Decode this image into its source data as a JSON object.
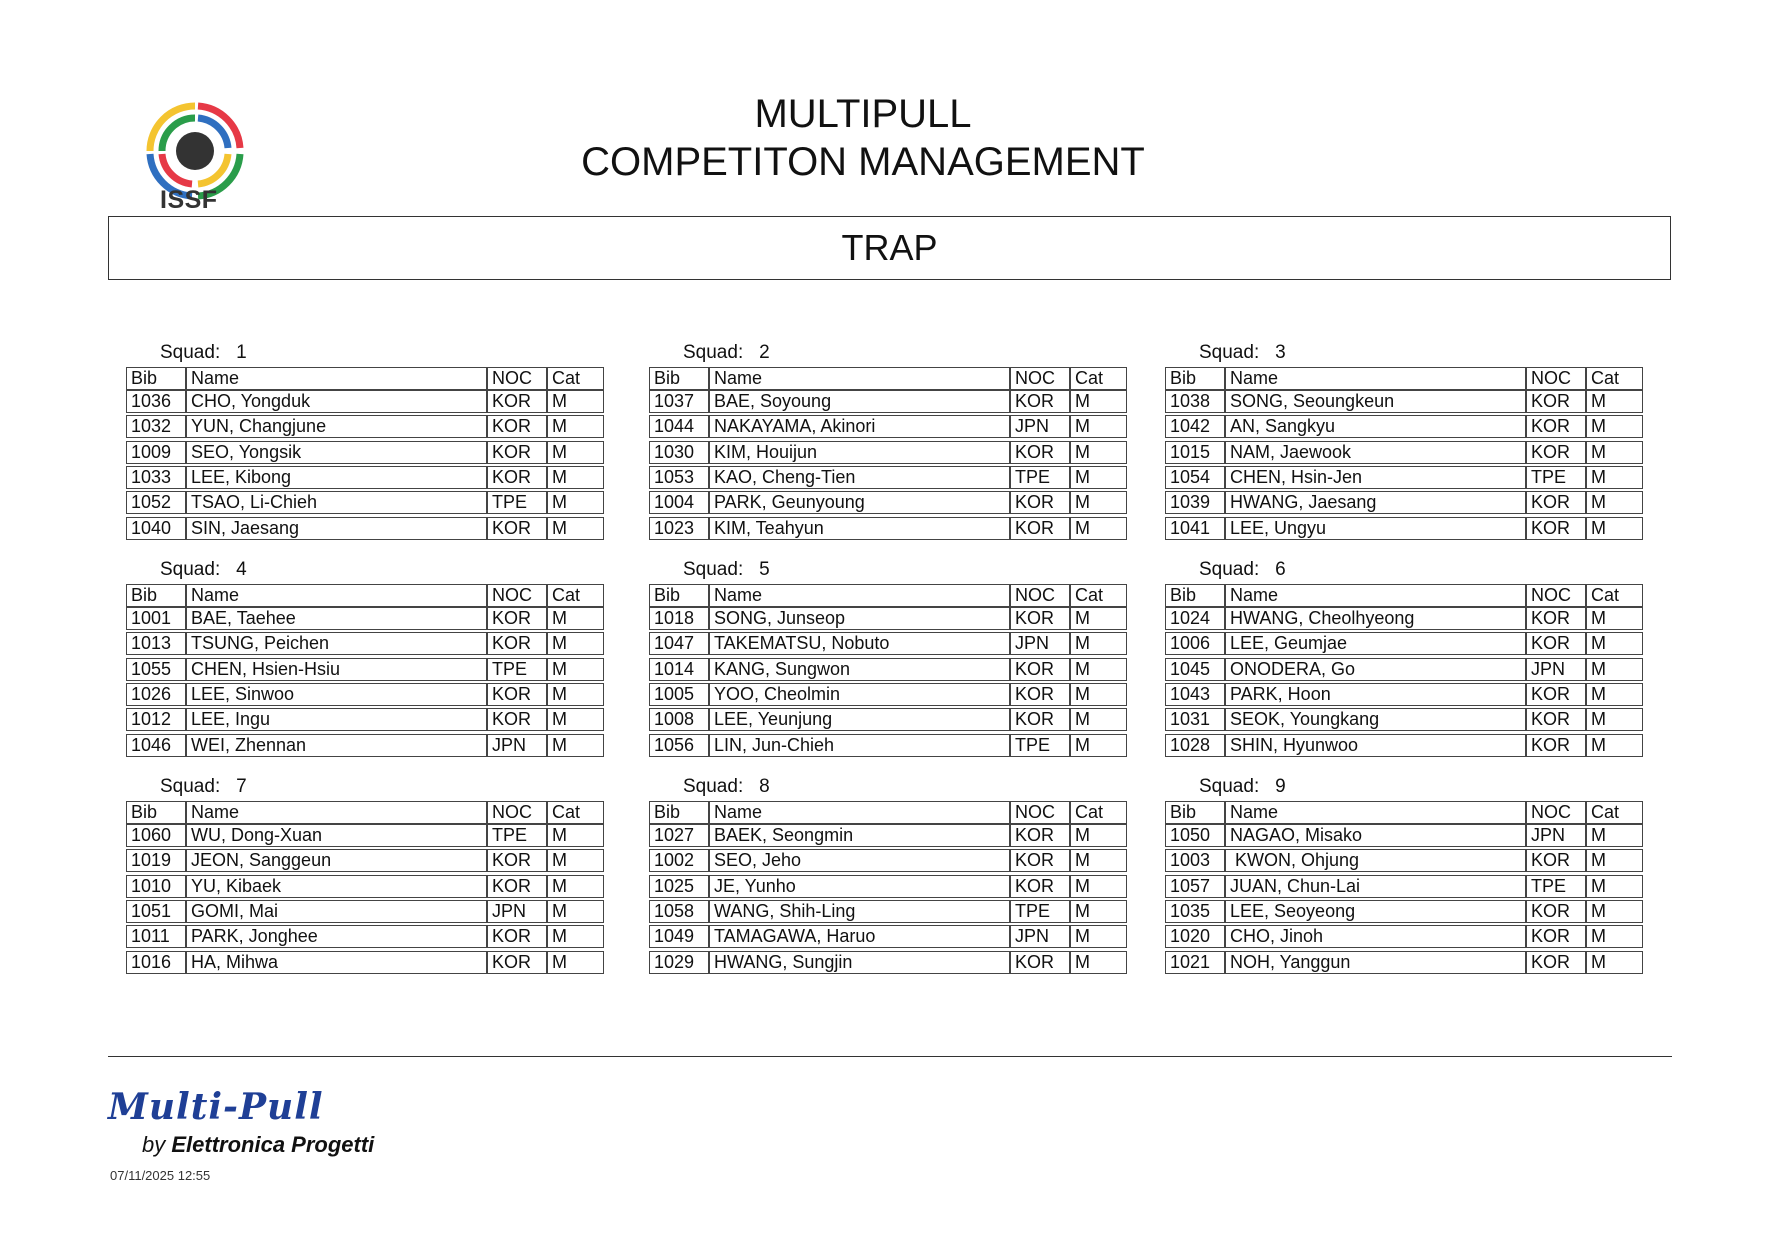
{
  "header": {
    "logo_text": "ISSF",
    "title_line1": "MULTIPULL",
    "title_line2": "COMPETITON MANAGEMENT",
    "event": "TRAP"
  },
  "columns": [
    "Bib",
    "Name",
    "NOC",
    "Cat"
  ],
  "squad_prefix": "Squad:",
  "squads": [
    {
      "number": "1",
      "rows": [
        [
          "1036",
          "CHO, Yongduk",
          "KOR",
          "M"
        ],
        [
          "1032",
          "YUN, Changjune",
          "KOR",
          "M"
        ],
        [
          "1009",
          "SEO, Yongsik",
          "KOR",
          "M"
        ],
        [
          "1033",
          "LEE, Kibong",
          "KOR",
          "M"
        ],
        [
          "1052",
          "TSAO, Li-Chieh",
          "TPE",
          "M"
        ],
        [
          "1040",
          "SIN, Jaesang",
          "KOR",
          "M"
        ]
      ]
    },
    {
      "number": "2",
      "rows": [
        [
          "1037",
          "BAE, Soyoung",
          "KOR",
          "M"
        ],
        [
          "1044",
          "NAKAYAMA, Akinori",
          "JPN",
          "M"
        ],
        [
          "1030",
          "KIM, Houijun",
          "KOR",
          "M"
        ],
        [
          "1053",
          "KAO, Cheng-Tien",
          "TPE",
          "M"
        ],
        [
          "1004",
          "PARK, Geunyoung",
          "KOR",
          "M"
        ],
        [
          "1023",
          "KIM, Teahyun",
          "KOR",
          "M"
        ]
      ]
    },
    {
      "number": "3",
      "rows": [
        [
          "1038",
          "SONG, Seoungkeun",
          "KOR",
          "M"
        ],
        [
          "1042",
          "AN, Sangkyu",
          "KOR",
          "M"
        ],
        [
          "1015",
          "NAM, Jaewook",
          "KOR",
          "M"
        ],
        [
          "1054",
          "CHEN, Hsin-Jen",
          "TPE",
          "M"
        ],
        [
          "1039",
          "HWANG, Jaesang",
          "KOR",
          "M"
        ],
        [
          "1041",
          "LEE, Ungyu",
          "KOR",
          "M"
        ]
      ]
    },
    {
      "number": "4",
      "rows": [
        [
          "1001",
          "BAE, Taehee",
          "KOR",
          "M"
        ],
        [
          "1013",
          "TSUNG, Peichen",
          "KOR",
          "M"
        ],
        [
          "1055",
          "CHEN, Hsien-Hsiu",
          "TPE",
          "M"
        ],
        [
          "1026",
          "LEE, Sinwoo",
          "KOR",
          "M"
        ],
        [
          "1012",
          "LEE, Ingu",
          "KOR",
          "M"
        ],
        [
          "1046",
          "WEI, Zhennan",
          "JPN",
          "M"
        ]
      ]
    },
    {
      "number": "5",
      "rows": [
        [
          "1018",
          "SONG, Junseop",
          "KOR",
          "M"
        ],
        [
          "1047",
          "TAKEMATSU, Nobuto",
          "JPN",
          "M"
        ],
        [
          "1014",
          "KANG, Sungwon",
          "KOR",
          "M"
        ],
        [
          "1005",
          "YOO, Cheolmin",
          "KOR",
          "M"
        ],
        [
          "1008",
          "LEE, Yeunjung",
          "KOR",
          "M"
        ],
        [
          "1056",
          "LIN, Jun-Chieh",
          "TPE",
          "M"
        ]
      ]
    },
    {
      "number": "6",
      "rows": [
        [
          "1024",
          "HWANG, Cheolhyeong",
          "KOR",
          "M"
        ],
        [
          "1006",
          "LEE, Geumjae",
          "KOR",
          "M"
        ],
        [
          "1045",
          "ONODERA, Go",
          "JPN",
          "M"
        ],
        [
          "1043",
          "PARK, Hoon",
          "KOR",
          "M"
        ],
        [
          "1031",
          "SEOK, Youngkang",
          "KOR",
          "M"
        ],
        [
          "1028",
          "SHIN, Hyunwoo",
          "KOR",
          "M"
        ]
      ]
    },
    {
      "number": "7",
      "rows": [
        [
          "1060",
          "WU, Dong-Xuan",
          "TPE",
          "M"
        ],
        [
          "1019",
          "JEON, Sanggeun",
          "KOR",
          "M"
        ],
        [
          "1010",
          "YU, Kibaek",
          "KOR",
          "M"
        ],
        [
          "1051",
          "GOMI, Mai",
          "JPN",
          "M"
        ],
        [
          "1011",
          "PARK, Jonghee",
          "KOR",
          "M"
        ],
        [
          "1016",
          "HA, Mihwa",
          "KOR",
          "M"
        ]
      ]
    },
    {
      "number": "8",
      "rows": [
        [
          "1027",
          "BAEK, Seongmin",
          "KOR",
          "M"
        ],
        [
          "1002",
          "SEO, Jeho",
          "KOR",
          "M"
        ],
        [
          "1025",
          "JE, Yunho",
          "KOR",
          "M"
        ],
        [
          "1058",
          "WANG, Shih-Ling",
          "TPE",
          "M"
        ],
        [
          "1049",
          "TAMAGAWA, Haruo",
          "JPN",
          "M"
        ],
        [
          "1029",
          "HWANG, Sungjin",
          "KOR",
          "M"
        ]
      ]
    },
    {
      "number": "9",
      "rows": [
        [
          "1050",
          "NAGAO, Misako",
          "JPN",
          "M"
        ],
        [
          "1003",
          " KWON, Ohjung",
          "KOR",
          "M"
        ],
        [
          "1057",
          "JUAN, Chun-Lai",
          "TPE",
          "M"
        ],
        [
          "1035",
          "LEE, Seoyeong",
          "KOR",
          "M"
        ],
        [
          "1020",
          "CHO, Jinoh",
          "KOR",
          "M"
        ],
        [
          "1021",
          "NOH, Yanggun",
          "KOR",
          "M"
        ]
      ]
    }
  ],
  "footer": {
    "brand": "Multi-Pull",
    "by": "by",
    "company": "Elettronica Progetti",
    "timestamp": "07/11/2025  12:55",
    "brand_color": "#1f3f96"
  },
  "logo_colors": [
    "#f4c430",
    "#e63946",
    "#2a9d4a",
    "#2f6fc0",
    "#333333"
  ]
}
